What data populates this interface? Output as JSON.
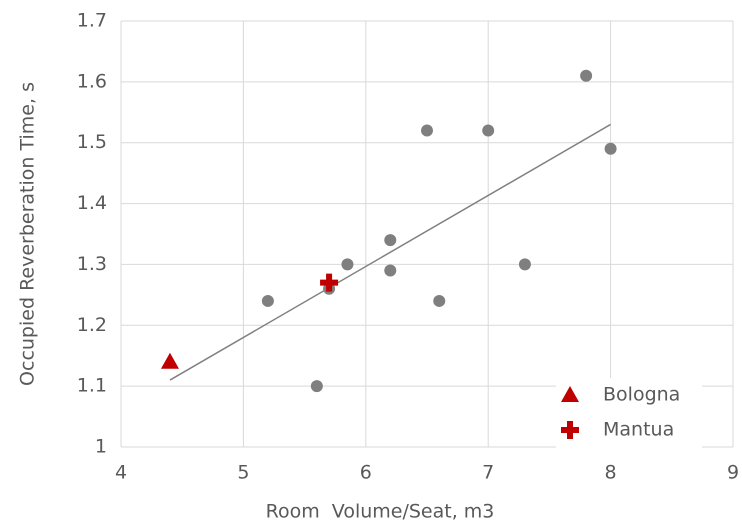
{
  "chart_data": {
    "type": "scatter",
    "x_label": "Room  Volume/Seat, m3",
    "y_label": "Occupied Reverberation Time, s",
    "xlim": [
      4,
      9
    ],
    "xticks": [
      4,
      5,
      6,
      7,
      8,
      9
    ],
    "ylim": [
      1,
      1.7
    ],
    "yticks": [
      1,
      1.1,
      1.2,
      1.3,
      1.4,
      1.5,
      1.6,
      1.7
    ],
    "grid": true,
    "legend": "lower right",
    "series": [
      {
        "color": "#7f7f7f",
        "marker": "circle",
        "x": [
          5.2,
          5.6,
          5.85,
          5.7,
          6.2,
          6.2,
          6.6,
          6.5,
          7.0,
          7.3,
          7.8,
          8.0
        ],
        "values": [
          1.24,
          1.1,
          1.3,
          1.26,
          1.34,
          1.29,
          1.24,
          1.52,
          1.52,
          1.3,
          1.61,
          1.49
        ]
      },
      {
        "name": "Bologna",
        "color": "#c00000",
        "marker": "triangle",
        "x": [
          4.4
        ],
        "values": [
          1.14
        ]
      },
      {
        "name": "Mantua",
        "color": "#c00000",
        "marker": "plus",
        "x": [
          5.7
        ],
        "values": [
          1.27
        ]
      }
    ],
    "trendline": {
      "color": "#808080",
      "x": [
        4.4,
        8.0
      ],
      "y": [
        1.11,
        1.53
      ]
    }
  }
}
